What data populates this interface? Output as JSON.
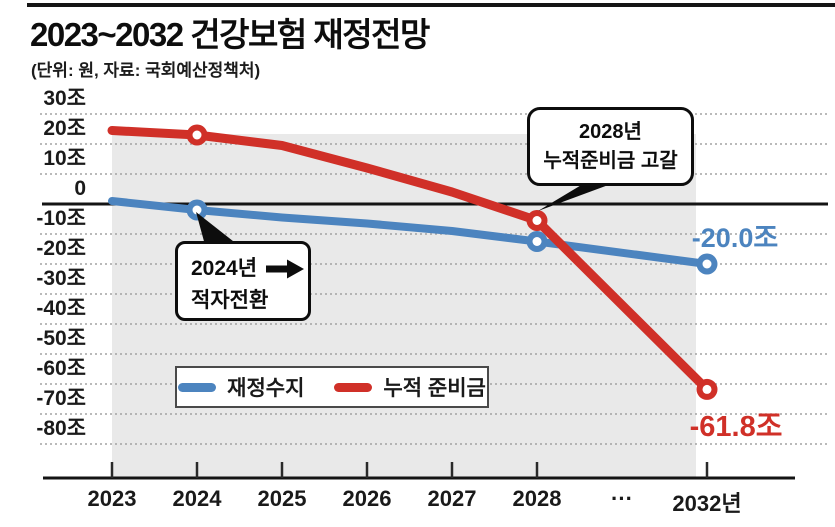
{
  "header": {
    "title": "2023~2032 건강보험 재정전망",
    "subtitle": "(단위: 원, 자료: 국회예산정책처)"
  },
  "colors": {
    "fiscal_balance_blue": "#4c84bf",
    "reserve_red": "#d03028",
    "plot_band_gray": "#e9e9e9",
    "grid_gray": "#a3a3a3",
    "axis_black": "#141414"
  },
  "chart_data": {
    "type": "line",
    "title": "2023~2032 건강보험 재정전망",
    "unit_source_note": "(단위: 원, 자료: 국회예산정책처)",
    "xlabel": "",
    "ylabel": "조 원",
    "ylim": [
      -90,
      33
    ],
    "grid": "dotted horizontal gridlines every 10조, solid line at 0",
    "legend_position": "inside bottom-left, boxed",
    "categories": [
      "2023",
      "2024",
      "2025",
      "2026",
      "2027",
      "2028",
      "···",
      "2032년"
    ],
    "axis_break_label": "···",
    "y_ticks": [
      {
        "label": "30조",
        "value": 30
      },
      {
        "label": "20조",
        "value": 20
      },
      {
        "label": "10조",
        "value": 10
      },
      {
        "label": "0",
        "value": 0
      },
      {
        "label": "-10조",
        "value": -10
      },
      {
        "label": "-20조",
        "value": -20
      },
      {
        "label": "-30조",
        "value": -30
      },
      {
        "label": "-40조",
        "value": -40
      },
      {
        "label": "-50조",
        "value": -50
      },
      {
        "label": "-60조",
        "value": -60
      },
      {
        "label": "-70조",
        "value": -70
      },
      {
        "label": "-80조",
        "value": -80
      }
    ],
    "series": [
      {
        "name": "재정수지",
        "color": "#4c84bf",
        "x": [
          "2023",
          "2024",
          "2025",
          "2026",
          "2027",
          "2028",
          "2032년"
        ],
        "values": [
          1,
          -2,
          -4.5,
          -6.5,
          -9,
          -12.5,
          -20.0
        ],
        "marker_years": [
          "2024",
          "2028",
          "2032년"
        ],
        "end_label": "-20.0조"
      },
      {
        "name": "누적 준비금",
        "color": "#d03028",
        "x": [
          "2023",
          "2024",
          "2025",
          "2026",
          "2027",
          "2028",
          "2032년"
        ],
        "values": [
          24.5,
          23,
          19.5,
          12,
          4,
          -5.5,
          -61.8
        ],
        "marker_years": [
          "2024",
          "2028",
          "2032년"
        ],
        "end_label": "-61.8조"
      }
    ]
  },
  "annotations": {
    "deficit": {
      "line1": "2024년",
      "line2": "적자전환",
      "points_to": "2024 재정수지 marker"
    },
    "depletion": {
      "line1": "2028년",
      "line2": "누적준비금 고갈",
      "points_to": "2028 누적 준비금 marker"
    }
  }
}
